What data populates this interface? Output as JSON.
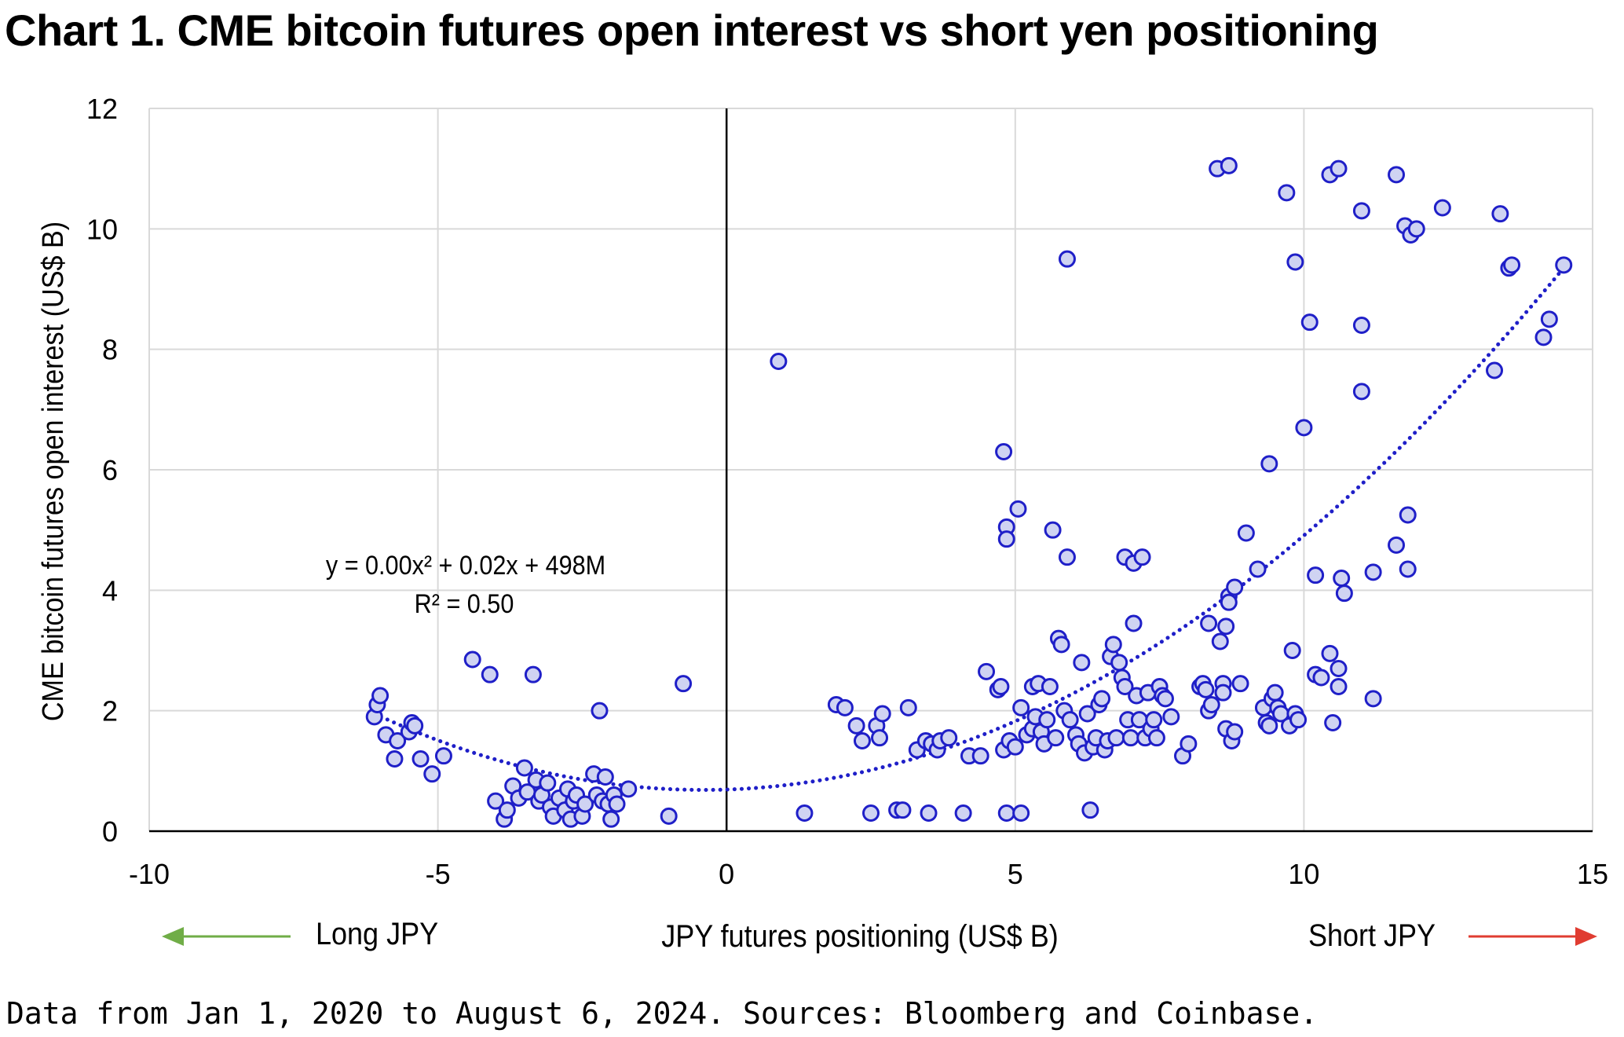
{
  "title": "Chart 1. CME bitcoin futures open interest vs short yen positioning",
  "footnote": "Data from Jan 1, 2020 to August 6, 2024. Sources: Bloomberg and Coinbase.",
  "colors": {
    "marker_stroke": "#1f1fc8",
    "marker_fill": "#cfd3f2",
    "trendline": "#1f1fc8",
    "grid": "#d9d9d9",
    "long_arrow": "#70ad47",
    "short_arrow": "#e03c31"
  },
  "chart_data": {
    "type": "scatter",
    "xlabel": "JPY futures positioning (US$ B)",
    "ylabel": "CME bitcoin futures open interest (US$ B)",
    "xlim": [
      -10,
      15
    ],
    "ylim": [
      0,
      12
    ],
    "xticks": [
      "-10",
      "-5",
      "0",
      "5",
      "10",
      "15"
    ],
    "yticks": [
      "0",
      "2",
      "4",
      "6",
      "8",
      "10",
      "12"
    ],
    "grid": true,
    "annotations": {
      "equation": "y = 0.00x² + 0.02x + 498M",
      "r_squared": "R² = 0.50",
      "left_arrow_label": "Long JPY",
      "right_arrow_label": "Short JPY"
    },
    "trendline": {
      "type": "polynomial-2",
      "x_range": [
        -6.1,
        14.5
      ]
    },
    "points": [
      [
        -6.1,
        1.9
      ],
      [
        -6.05,
        2.1
      ],
      [
        -6.0,
        2.25
      ],
      [
        -5.9,
        1.6
      ],
      [
        -5.75,
        1.2
      ],
      [
        -5.7,
        1.5
      ],
      [
        -5.5,
        1.65
      ],
      [
        -5.45,
        1.8
      ],
      [
        -5.4,
        1.75
      ],
      [
        -5.3,
        1.2
      ],
      [
        -5.1,
        0.95
      ],
      [
        -4.9,
        1.25
      ],
      [
        -4.4,
        2.85
      ],
      [
        -4.1,
        2.6
      ],
      [
        -4.0,
        0.5
      ],
      [
        -3.85,
        0.2
      ],
      [
        -3.8,
        0.35
      ],
      [
        -3.7,
        0.75
      ],
      [
        -3.6,
        0.55
      ],
      [
        -3.5,
        1.05
      ],
      [
        -3.45,
        0.65
      ],
      [
        -3.35,
        2.6
      ],
      [
        -3.3,
        0.85
      ],
      [
        -3.25,
        0.5
      ],
      [
        -3.2,
        0.6
      ],
      [
        -3.1,
        0.8
      ],
      [
        -3.05,
        0.4
      ],
      [
        -3.0,
        0.25
      ],
      [
        -2.9,
        0.55
      ],
      [
        -2.8,
        0.35
      ],
      [
        -2.75,
        0.7
      ],
      [
        -2.7,
        0.2
      ],
      [
        -2.65,
        0.5
      ],
      [
        -2.6,
        0.6
      ],
      [
        -2.5,
        0.25
      ],
      [
        -2.45,
        0.45
      ],
      [
        -2.3,
        0.95
      ],
      [
        -2.25,
        0.6
      ],
      [
        -2.2,
        2.0
      ],
      [
        -2.15,
        0.5
      ],
      [
        -2.1,
        0.9
      ],
      [
        -2.05,
        0.45
      ],
      [
        -2.0,
        0.2
      ],
      [
        -1.95,
        0.6
      ],
      [
        -1.9,
        0.45
      ],
      [
        -1.7,
        0.7
      ],
      [
        -1.0,
        0.25
      ],
      [
        -0.75,
        2.45
      ],
      [
        0.9,
        7.8
      ],
      [
        1.35,
        0.3
      ],
      [
        1.9,
        2.1
      ],
      [
        2.05,
        2.05
      ],
      [
        2.25,
        1.75
      ],
      [
        2.35,
        1.5
      ],
      [
        2.5,
        0.3
      ],
      [
        2.6,
        1.75
      ],
      [
        2.65,
        1.55
      ],
      [
        2.7,
        1.95
      ],
      [
        2.95,
        0.35
      ],
      [
        3.05,
        0.35
      ],
      [
        3.15,
        2.05
      ],
      [
        3.3,
        1.35
      ],
      [
        3.45,
        1.5
      ],
      [
        3.5,
        0.3
      ],
      [
        3.55,
        1.45
      ],
      [
        3.65,
        1.35
      ],
      [
        3.7,
        1.5
      ],
      [
        3.85,
        1.55
      ],
      [
        4.1,
        0.3
      ],
      [
        4.2,
        1.25
      ],
      [
        4.4,
        1.25
      ],
      [
        4.5,
        2.65
      ],
      [
        4.7,
        2.35
      ],
      [
        4.75,
        2.4
      ],
      [
        4.8,
        6.3
      ],
      [
        4.8,
        1.35
      ],
      [
        4.85,
        5.05
      ],
      [
        4.85,
        4.85
      ],
      [
        4.85,
        0.3
      ],
      [
        4.9,
        1.5
      ],
      [
        5.0,
        1.4
      ],
      [
        5.05,
        5.35
      ],
      [
        5.1,
        2.05
      ],
      [
        5.1,
        0.3
      ],
      [
        5.2,
        1.6
      ],
      [
        5.3,
        1.7
      ],
      [
        5.3,
        2.4
      ],
      [
        5.35,
        1.9
      ],
      [
        5.4,
        2.45
      ],
      [
        5.45,
        1.65
      ],
      [
        5.5,
        1.45
      ],
      [
        5.55,
        1.85
      ],
      [
        5.6,
        2.4
      ],
      [
        5.65,
        5.0
      ],
      [
        5.7,
        1.55
      ],
      [
        5.75,
        3.2
      ],
      [
        5.8,
        3.1
      ],
      [
        5.85,
        2.0
      ],
      [
        5.9,
        9.5
      ],
      [
        5.9,
        4.55
      ],
      [
        5.95,
        1.85
      ],
      [
        6.05,
        1.6
      ],
      [
        6.1,
        1.45
      ],
      [
        6.15,
        2.8
      ],
      [
        6.2,
        1.3
      ],
      [
        6.25,
        1.95
      ],
      [
        6.3,
        0.35
      ],
      [
        6.35,
        1.4
      ],
      [
        6.4,
        1.55
      ],
      [
        6.45,
        2.1
      ],
      [
        6.5,
        2.2
      ],
      [
        6.55,
        1.35
      ],
      [
        6.6,
        1.5
      ],
      [
        6.65,
        2.9
      ],
      [
        6.7,
        3.1
      ],
      [
        6.75,
        1.55
      ],
      [
        6.8,
        2.8
      ],
      [
        6.85,
        2.55
      ],
      [
        6.9,
        2.4
      ],
      [
        6.9,
        4.55
      ],
      [
        6.95,
        1.85
      ],
      [
        7.0,
        1.55
      ],
      [
        7.05,
        4.45
      ],
      [
        7.05,
        3.45
      ],
      [
        7.1,
        2.25
      ],
      [
        7.15,
        1.85
      ],
      [
        7.2,
        4.55
      ],
      [
        7.25,
        1.55
      ],
      [
        7.3,
        2.3
      ],
      [
        7.35,
        1.7
      ],
      [
        7.4,
        1.85
      ],
      [
        7.45,
        1.55
      ],
      [
        7.5,
        2.4
      ],
      [
        7.55,
        2.25
      ],
      [
        7.6,
        2.2
      ],
      [
        7.7,
        1.9
      ],
      [
        7.9,
        1.25
      ],
      [
        8.0,
        1.45
      ],
      [
        8.2,
        2.4
      ],
      [
        8.25,
        2.45
      ],
      [
        8.3,
        2.35
      ],
      [
        8.35,
        3.45
      ],
      [
        8.35,
        2.0
      ],
      [
        8.4,
        2.1
      ],
      [
        8.5,
        11.0
      ],
      [
        8.55,
        3.15
      ],
      [
        8.6,
        2.45
      ],
      [
        8.6,
        2.3
      ],
      [
        8.65,
        3.4
      ],
      [
        8.65,
        1.7
      ],
      [
        8.7,
        11.05
      ],
      [
        8.7,
        3.9
      ],
      [
        8.7,
        3.8
      ],
      [
        8.75,
        1.5
      ],
      [
        8.8,
        4.05
      ],
      [
        8.8,
        1.65
      ],
      [
        8.9,
        2.45
      ],
      [
        9.0,
        4.95
      ],
      [
        9.2,
        4.35
      ],
      [
        9.3,
        2.05
      ],
      [
        9.35,
        1.8
      ],
      [
        9.4,
        6.1
      ],
      [
        9.4,
        1.75
      ],
      [
        9.45,
        2.2
      ],
      [
        9.5,
        2.3
      ],
      [
        9.55,
        2.05
      ],
      [
        9.6,
        1.95
      ],
      [
        9.7,
        10.6
      ],
      [
        9.75,
        1.75
      ],
      [
        9.8,
        3.0
      ],
      [
        9.85,
        1.95
      ],
      [
        9.85,
        9.45
      ],
      [
        9.9,
        1.85
      ],
      [
        10.0,
        6.7
      ],
      [
        10.1,
        8.45
      ],
      [
        10.2,
        4.25
      ],
      [
        10.2,
        2.6
      ],
      [
        10.3,
        2.55
      ],
      [
        10.45,
        10.9
      ],
      [
        10.45,
        2.95
      ],
      [
        10.5,
        1.8
      ],
      [
        10.6,
        11.0
      ],
      [
        10.6,
        2.7
      ],
      [
        10.6,
        2.4
      ],
      [
        10.65,
        4.2
      ],
      [
        10.7,
        3.95
      ],
      [
        11.0,
        10.3
      ],
      [
        11.0,
        8.4
      ],
      [
        11.0,
        7.3
      ],
      [
        11.2,
        4.3
      ],
      [
        11.2,
        2.2
      ],
      [
        11.6,
        10.9
      ],
      [
        11.6,
        4.75
      ],
      [
        11.75,
        10.05
      ],
      [
        11.8,
        5.25
      ],
      [
        11.8,
        4.35
      ],
      [
        11.85,
        9.9
      ],
      [
        11.95,
        10.0
      ],
      [
        12.4,
        10.35
      ],
      [
        13.3,
        7.65
      ],
      [
        13.4,
        10.25
      ],
      [
        13.55,
        9.35
      ],
      [
        13.6,
        9.4
      ],
      [
        14.15,
        8.2
      ],
      [
        14.25,
        8.5
      ],
      [
        14.5,
        9.4
      ]
    ]
  }
}
